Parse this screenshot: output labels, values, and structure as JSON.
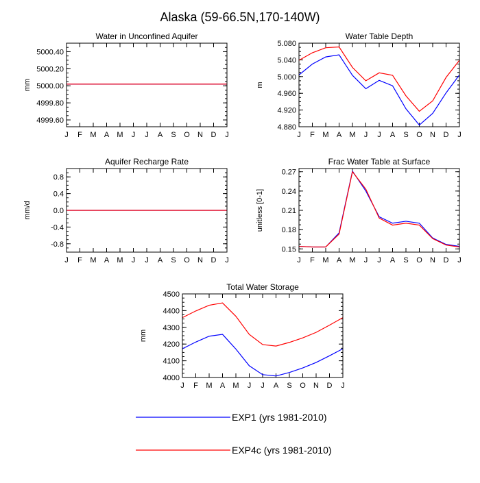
{
  "figure": {
    "title": "Alaska (59-66.5N,170-140W)"
  },
  "colors": {
    "exp1": "#0000ff",
    "exp4c": "#ff0000"
  },
  "legend": {
    "placement": "bottom-center",
    "entries": [
      {
        "name": "EXP1 (yrs 1981-2010)",
        "color": "#0000ff"
      },
      {
        "name": "EXP4c (yrs 1981-2010)",
        "color": "#ff0000"
      }
    ]
  },
  "chart_data": [
    {
      "id": "unconfined",
      "type": "line",
      "title": "Water in Unconfined Aquifer",
      "xlabel": "",
      "ylabel": "mm",
      "categories": [
        "J",
        "F",
        "M",
        "A",
        "M",
        "J",
        "J",
        "A",
        "S",
        "O",
        "N",
        "D",
        "J"
      ],
      "ylim": [
        4999.52,
        5000.5
      ],
      "yticks": [
        4999.6,
        4999.8,
        5000.0,
        5000.2,
        5000.4
      ],
      "ytick_labels": [
        "4999.60",
        "4999.80",
        "5000.00",
        "5000.20",
        "5000.40"
      ],
      "series": [
        {
          "name": "EXP1 (yrs 1981-2010)",
          "color": "#0000ff",
          "values": [
            5000.02,
            5000.02,
            5000.02,
            5000.02,
            5000.02,
            5000.02,
            5000.02,
            5000.02,
            5000.02,
            5000.02,
            5000.02,
            5000.02,
            5000.02
          ]
        },
        {
          "name": "EXP4c (yrs 1981-2010)",
          "color": "#ff0000",
          "values": [
            5000.02,
            5000.02,
            5000.02,
            5000.02,
            5000.02,
            5000.02,
            5000.02,
            5000.02,
            5000.02,
            5000.02,
            5000.02,
            5000.02,
            5000.02
          ]
        }
      ]
    },
    {
      "id": "wtd",
      "type": "line",
      "title": "Water Table Depth",
      "xlabel": "",
      "ylabel": "m",
      "categories": [
        "J",
        "F",
        "M",
        "A",
        "M",
        "J",
        "J",
        "A",
        "S",
        "O",
        "N",
        "D",
        "J"
      ],
      "ylim": [
        4.88,
        5.08
      ],
      "yticks": [
        4.88,
        4.92,
        4.96,
        5.0,
        5.04,
        5.08
      ],
      "ytick_labels": [
        "4.880",
        "4.920",
        "4.960",
        "5.000",
        "5.040",
        "5.080"
      ],
      "series": [
        {
          "name": "EXP1 (yrs 1981-2010)",
          "color": "#0000ff",
          "values": [
            5.004,
            5.03,
            5.047,
            5.052,
            5.003,
            4.971,
            4.991,
            4.978,
            4.923,
            4.884,
            4.912,
            4.961,
            5.004
          ]
        },
        {
          "name": "EXP4c (yrs 1981-2010)",
          "color": "#ff0000",
          "values": [
            5.039,
            5.057,
            5.069,
            5.071,
            5.022,
            4.99,
            5.009,
            5.003,
            4.954,
            4.917,
            4.942,
            4.998,
            5.039
          ]
        }
      ]
    },
    {
      "id": "recharge",
      "type": "line",
      "title": "Aquifer Recharge Rate",
      "xlabel": "",
      "ylabel": "mm/d",
      "categories": [
        "J",
        "F",
        "M",
        "A",
        "M",
        "J",
        "J",
        "A",
        "S",
        "O",
        "N",
        "D",
        "J"
      ],
      "ylim": [
        -1.0,
        1.0
      ],
      "yticks": [
        -0.8,
        -0.4,
        0.0,
        0.4,
        0.8
      ],
      "ytick_labels": [
        "-0.8",
        "-0.4",
        "0.0",
        "0.4",
        "0.8"
      ],
      "series": [
        {
          "name": "EXP1 (yrs 1981-2010)",
          "color": "#0000ff",
          "values": [
            0,
            0,
            0,
            0,
            0,
            0,
            0,
            0,
            0,
            0,
            0,
            0,
            0
          ]
        },
        {
          "name": "EXP4c (yrs 1981-2010)",
          "color": "#ff0000",
          "values": [
            0,
            0,
            0,
            0,
            0,
            0,
            0,
            0,
            0,
            0,
            0,
            0,
            0
          ]
        }
      ]
    },
    {
      "id": "fwt",
      "type": "line",
      "title": "Frac Water Table at Surface",
      "xlabel": "",
      "ylabel": "unitless [0-1]",
      "categories": [
        "J",
        "F",
        "M",
        "A",
        "M",
        "J",
        "J",
        "A",
        "S",
        "O",
        "N",
        "D",
        "J"
      ],
      "ylim": [
        0.145,
        0.275
      ],
      "yticks": [
        0.15,
        0.18,
        0.21,
        0.24,
        0.27
      ],
      "ytick_labels": [
        "0.15",
        "0.18",
        "0.21",
        "0.24",
        "0.27"
      ],
      "series": [
        {
          "name": "EXP1 (yrs 1981-2010)",
          "color": "#0000ff",
          "values": [
            0.154,
            0.153,
            0.153,
            0.175,
            0.271,
            0.24,
            0.2,
            0.19,
            0.193,
            0.19,
            0.167,
            0.157,
            0.154
          ]
        },
        {
          "name": "EXP4c (yrs 1981-2010)",
          "color": "#ff0000",
          "values": [
            0.154,
            0.153,
            0.153,
            0.173,
            0.27,
            0.243,
            0.198,
            0.187,
            0.19,
            0.187,
            0.166,
            0.156,
            0.153
          ]
        }
      ]
    },
    {
      "id": "tws",
      "type": "line",
      "title": "Total Water Storage",
      "xlabel": "",
      "ylabel": "mm",
      "categories": [
        "J",
        "F",
        "M",
        "A",
        "M",
        "J",
        "J",
        "A",
        "S",
        "O",
        "N",
        "D",
        "J"
      ],
      "ylim": [
        4000,
        4500
      ],
      "yticks": [
        4000,
        4100,
        4200,
        4300,
        4400,
        4500
      ],
      "ytick_labels": [
        "4000",
        "4100",
        "4200",
        "4300",
        "4400",
        "4500"
      ],
      "series": [
        {
          "name": "EXP1 (yrs 1981-2010)",
          "color": "#0000ff",
          "values": [
            4172,
            4212,
            4247,
            4258,
            4170,
            4070,
            4017,
            4009,
            4030,
            4057,
            4090,
            4130,
            4172
          ]
        },
        {
          "name": "EXP4c (yrs 1981-2010)",
          "color": "#ff0000",
          "values": [
            4358,
            4398,
            4432,
            4446,
            4366,
            4258,
            4197,
            4188,
            4210,
            4237,
            4270,
            4313,
            4358
          ]
        }
      ]
    }
  ]
}
